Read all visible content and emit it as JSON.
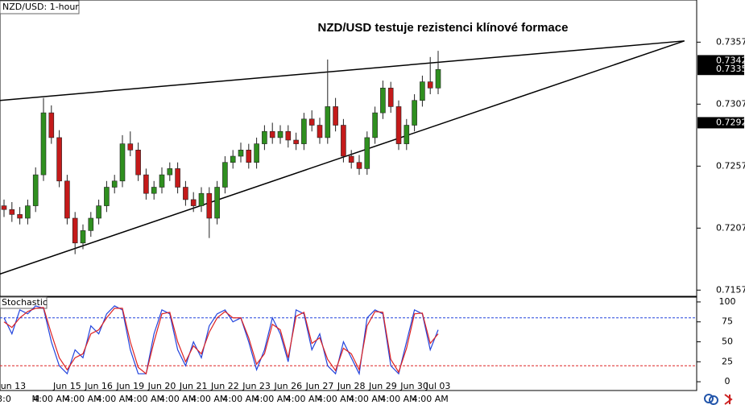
{
  "chart_data": [
    {
      "type": "candlestick",
      "header": "NZD/USD: 1-hour",
      "title": "NZD/USD testuje rezistenci klínové formace",
      "categories": [
        null,
        "Jun 13",
        null,
        null,
        null,
        null,
        null,
        null,
        "Jun 15",
        null,
        null,
        null,
        "Jun 16",
        null,
        null,
        null,
        "Jun 19",
        null,
        null,
        null,
        "Jun 20",
        null,
        null,
        null,
        "Jun 21",
        null,
        null,
        null,
        "Jun 22",
        null,
        null,
        null,
        "Jun 23",
        null,
        null,
        null,
        "Jun 26",
        null,
        null,
        null,
        "Jun 27",
        null,
        null,
        null,
        "Jun 28",
        null,
        null,
        null,
        "Jun 29",
        null,
        null,
        null,
        "Jun 30",
        null,
        null,
        "Jul 03"
      ],
      "x_sublabels": [
        "3:0",
        null,
        null,
        null,
        "M",
        null,
        "4:00 AM",
        null,
        null,
        null,
        "4:00 AM",
        null,
        null,
        null,
        "4:00 AM",
        null,
        null,
        null,
        "4:00 AM",
        null,
        null,
        null,
        "4:00 AM",
        null,
        null,
        null,
        "4:00 AM",
        null,
        null,
        null,
        "4:00 AM",
        null,
        null,
        null,
        "4:00 AM",
        null,
        null,
        null,
        "4:00 AM",
        null,
        null,
        null,
        "4:00 AM",
        null,
        null,
        null,
        "4:00 AM",
        null,
        null,
        null,
        "4:00 AM",
        null,
        null,
        null,
        "4:00 AM",
        null
      ],
      "open": [
        0.7225,
        0.7222,
        0.7218,
        0.7215,
        0.7225,
        0.725,
        0.73,
        0.728,
        0.7245,
        0.7215,
        0.7195,
        0.7205,
        0.7215,
        0.7225,
        0.724,
        0.7245,
        0.7275,
        0.727,
        0.725,
        0.7235,
        0.724,
        0.725,
        0.7255,
        0.724,
        0.723,
        0.7225,
        0.7235,
        0.7215,
        0.724,
        0.726,
        0.7265,
        0.727,
        0.726,
        0.7275,
        0.7285,
        0.728,
        0.7285,
        0.7278,
        0.7275,
        0.7295,
        0.729,
        0.728,
        0.7305,
        0.729,
        0.7265,
        0.726,
        0.7255,
        0.728,
        0.73,
        0.732,
        0.7305,
        0.7275,
        0.729,
        0.731,
        0.7325,
        0.732
      ],
      "high": [
        0.723,
        0.7228,
        0.7224,
        0.723,
        0.7256,
        0.7312,
        0.7306,
        0.7286,
        0.725,
        0.722,
        0.721,
        0.722,
        0.723,
        0.7245,
        0.725,
        0.7282,
        0.7285,
        0.7276,
        0.7255,
        0.7245,
        0.7256,
        0.726,
        0.726,
        0.7245,
        0.7236,
        0.724,
        0.724,
        0.7245,
        0.7265,
        0.727,
        0.7276,
        0.7275,
        0.728,
        0.729,
        0.7292,
        0.729,
        0.729,
        0.7284,
        0.73,
        0.7302,
        0.7296,
        0.7343,
        0.7312,
        0.7295,
        0.727,
        0.7266,
        0.7285,
        0.7305,
        0.7326,
        0.7325,
        0.731,
        0.7295,
        0.7315,
        0.733,
        0.7345,
        0.735
      ],
      "low": [
        0.7216,
        0.7212,
        0.721,
        0.721,
        0.722,
        0.7245,
        0.7275,
        0.724,
        0.721,
        0.7186,
        0.719,
        0.72,
        0.721,
        0.722,
        0.7235,
        0.724,
        0.7265,
        0.7245,
        0.723,
        0.723,
        0.7235,
        0.7245,
        0.7235,
        0.7225,
        0.722,
        0.722,
        0.7199,
        0.721,
        0.7235,
        0.7255,
        0.726,
        0.7255,
        0.7255,
        0.727,
        0.7275,
        0.7275,
        0.7272,
        0.727,
        0.727,
        0.7285,
        0.7275,
        0.7275,
        0.7285,
        0.726,
        0.7255,
        0.725,
        0.725,
        0.7275,
        0.7295,
        0.73,
        0.727,
        0.727,
        0.7285,
        0.7305,
        0.7315,
        0.7315
      ],
      "close": [
        0.7222,
        0.7218,
        0.7215,
        0.7225,
        0.725,
        0.73,
        0.728,
        0.7245,
        0.7215,
        0.7195,
        0.7205,
        0.7215,
        0.7225,
        0.724,
        0.7245,
        0.7275,
        0.727,
        0.725,
        0.7235,
        0.724,
        0.725,
        0.7255,
        0.724,
        0.723,
        0.7225,
        0.7235,
        0.7215,
        0.724,
        0.726,
        0.7265,
        0.727,
        0.726,
        0.7275,
        0.7285,
        0.728,
        0.7285,
        0.7278,
        0.7275,
        0.7295,
        0.729,
        0.728,
        0.7305,
        0.729,
        0.7265,
        0.726,
        0.7255,
        0.728,
        0.73,
        0.732,
        0.7305,
        0.7275,
        0.729,
        0.731,
        0.7325,
        0.732,
        0.7335
      ],
      "up_color": "#2f8f1f",
      "down_color": "#c41a1a",
      "ylim": [
        0.7152,
        0.7391
      ],
      "yticks": [
        0.7157,
        0.7207,
        0.7257,
        0.7307,
        0.7357
      ],
      "price_tags": [
        0.7342,
        0.7335,
        0.7292
      ],
      "trendlines": [
        {
          "x": [
            -0.5,
            86.2
          ],
          "y": [
            0.731,
            0.7358
          ]
        },
        {
          "x": [
            -0.5,
            86.2
          ],
          "y": [
            0.717,
            0.7358
          ]
        }
      ]
    },
    {
      "type": "line",
      "title": "Stochastic",
      "series": [
        {
          "color": "#2244dd",
          "values": [
            80,
            60,
            90,
            85,
            95,
            92,
            50,
            20,
            10,
            40,
            30,
            70,
            60,
            85,
            95,
            90,
            40,
            10,
            10,
            60,
            90,
            85,
            40,
            20,
            50,
            30,
            70,
            85,
            90,
            75,
            80,
            50,
            15,
            40,
            80,
            60,
            25,
            90,
            85,
            40,
            60,
            20,
            10,
            50,
            30,
            10,
            80,
            90,
            85,
            20,
            10,
            50,
            90,
            85,
            40,
            65
          ]
        },
        {
          "color": "#dd2222",
          "values": [
            75,
            68,
            80,
            88,
            92,
            93,
            60,
            30,
            15,
            30,
            35,
            60,
            65,
            80,
            92,
            92,
            50,
            18,
            10,
            50,
            85,
            87,
            50,
            25,
            45,
            35,
            62,
            80,
            88,
            80,
            80,
            55,
            22,
            35,
            72,
            65,
            30,
            82,
            87,
            48,
            55,
            28,
            14,
            42,
            35,
            15,
            70,
            88,
            87,
            28,
            12,
            42,
            85,
            86,
            48,
            60
          ]
        }
      ],
      "ylim": [
        -11,
        105
      ],
      "yticks": [
        0,
        25,
        50,
        75,
        100
      ],
      "levels": [
        {
          "value": 80,
          "color": "#2244dd"
        },
        {
          "value": 20,
          "color": "#dd2222"
        }
      ]
    }
  ]
}
